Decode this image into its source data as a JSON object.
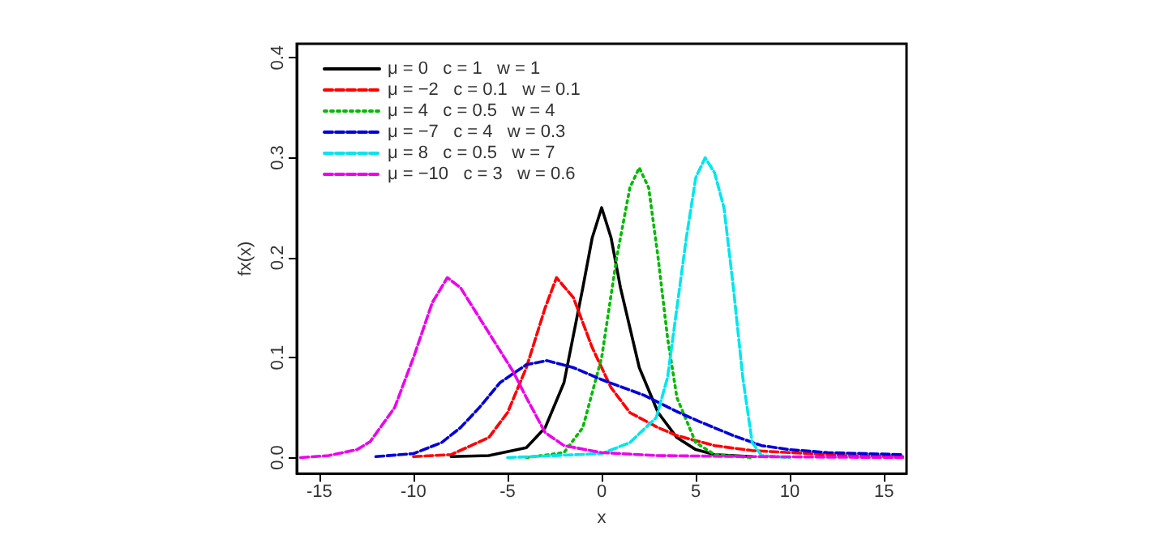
{
  "chart_data": {
    "type": "line",
    "xlabel": "x",
    "ylabel": "fx(x)",
    "xlim": [
      -16.2,
      16.2
    ],
    "xticks": [
      -15,
      -10,
      -5,
      0,
      5,
      10,
      15
    ],
    "ylim": [
      -0.016,
      0.414
    ],
    "yticks": [
      {
        "value": 0,
        "label": "0.0"
      },
      0.1,
      0.2,
      0.3,
      0.4
    ],
    "grid": false,
    "legend": "top left",
    "marker": "none",
    "series": [
      {
        "name": "μ = 0   c = 1   w = 1",
        "color": "#000000",
        "line_style": "solid",
        "x": [
          -8,
          -6,
          -4,
          -3,
          -2,
          -1,
          -0.5,
          0,
          0.5,
          1,
          2,
          3,
          4,
          5,
          6,
          8
        ],
        "values": [
          0.001,
          0.002,
          0.01,
          0.03,
          0.075,
          0.17,
          0.22,
          0.25,
          0.22,
          0.17,
          0.09,
          0.045,
          0.02,
          0.008,
          0.003,
          0.001
        ]
      },
      {
        "name": "μ = −2   c = 0.1   w = 0.1",
        "color": "#ff0000",
        "line_style": "dashed",
        "x": [
          -10,
          -8,
          -6,
          -5,
          -4,
          -3,
          -2.4,
          -1.5,
          -0.5,
          0.5,
          1.5,
          3,
          4,
          6,
          8,
          10,
          13,
          16
        ],
        "values": [
          0.001,
          0.003,
          0.02,
          0.045,
          0.09,
          0.15,
          0.18,
          0.16,
          0.11,
          0.07,
          0.045,
          0.03,
          0.022,
          0.012,
          0.007,
          0.005,
          0.002,
          0.001
        ]
      },
      {
        "name": "μ = 4   c = 0.5   w = 4",
        "color": "#00bb00",
        "line_style": "dotted",
        "x": [
          -4,
          -2,
          -1,
          0,
          0.8,
          1.5,
          2,
          2.5,
          3,
          3.5,
          4,
          5,
          6,
          8
        ],
        "values": [
          0,
          0.005,
          0.03,
          0.1,
          0.2,
          0.27,
          0.29,
          0.27,
          0.2,
          0.12,
          0.06,
          0.015,
          0.003,
          0
        ]
      },
      {
        "name": "μ = −7   c = 4   w = 0.3",
        "color": "#0000dd",
        "line_style": "dashed",
        "x": [
          -12,
          -10,
          -8.5,
          -7.5,
          -6.5,
          -5.4,
          -4,
          -2.9,
          -1.5,
          0,
          2.3,
          4,
          5.2,
          7,
          8.5,
          10,
          12,
          16
        ],
        "values": [
          0.001,
          0.004,
          0.015,
          0.03,
          0.05,
          0.075,
          0.093,
          0.097,
          0.09,
          0.078,
          0.062,
          0.046,
          0.036,
          0.022,
          0.012,
          0.008,
          0.005,
          0.003
        ]
      },
      {
        "name": "μ = 8   c = 0.5   w = 7",
        "color": "#00e5ee",
        "line_style": "dashed",
        "x": [
          -5,
          0,
          1.5,
          2.9,
          3.5,
          4,
          4.5,
          5,
          5.5,
          6,
          6.5,
          7,
          7.5,
          8,
          8.5,
          10
        ],
        "values": [
          0,
          0.004,
          0.015,
          0.04,
          0.08,
          0.15,
          0.22,
          0.28,
          0.3,
          0.285,
          0.25,
          0.17,
          0.08,
          0.015,
          0.002,
          0
        ]
      },
      {
        "name": "μ = −10   c = 3   w = 0.6",
        "color": "#ee00ee",
        "line_style": "dashed",
        "x": [
          -16,
          -14.5,
          -13,
          -12.3,
          -11,
          -10,
          -9,
          -8.2,
          -7.5,
          -6.5,
          -5.5,
          -4.7,
          -4,
          -3,
          -2,
          0,
          3,
          8,
          16
        ],
        "values": [
          0,
          0.002,
          0.008,
          0.016,
          0.05,
          0.1,
          0.155,
          0.18,
          0.17,
          0.14,
          0.11,
          0.086,
          0.06,
          0.025,
          0.012,
          0.005,
          0.002,
          0.001,
          0
        ]
      }
    ]
  }
}
